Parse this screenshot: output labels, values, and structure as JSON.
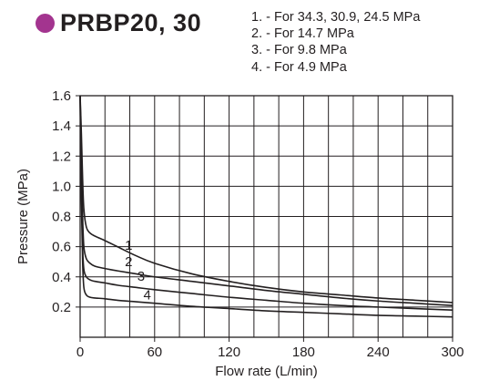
{
  "header": {
    "title": "PRBP20, 30",
    "bullet_color": "#a3348f"
  },
  "notes": [
    "1. - For 34.3, 30.9, 24.5 MPa",
    "2. - For 14.7 MPa",
    "3. - For 9.8 MPa",
    "4. - For 4.9 MPa"
  ],
  "chart_data": {
    "type": "line",
    "title": "PRBP20, 30",
    "xlabel": "Flow rate (L/min)",
    "ylabel": "Pressure (MPa)",
    "xlim": [
      0,
      300
    ],
    "ylim": [
      0,
      1.6
    ],
    "x_ticks": [
      0,
      60,
      120,
      180,
      240,
      300
    ],
    "x_tick_labels": [
      "0",
      "60",
      "120",
      "180",
      "240",
      "300"
    ],
    "y_ticks": [
      0.2,
      0.4,
      0.6,
      0.8,
      1.0,
      1.2,
      1.4,
      1.6
    ],
    "y_tick_labels": [
      "0.2",
      "0.4",
      "0.6",
      "0.8",
      "1.0",
      "1.2",
      "1.4",
      "1.6"
    ],
    "grid": true,
    "line_color": "#231f20",
    "series": [
      {
        "name": "1",
        "x": [
          0,
          1,
          2,
          3,
          5,
          8,
          12,
          20,
          30,
          45,
          60,
          90,
          120,
          150,
          180,
          210,
          240,
          270,
          300
        ],
        "y": [
          1.6,
          1.35,
          1.05,
          0.85,
          0.73,
          0.69,
          0.67,
          0.64,
          0.6,
          0.54,
          0.49,
          0.42,
          0.37,
          0.33,
          0.3,
          0.28,
          0.26,
          0.245,
          0.23
        ]
      },
      {
        "name": "2",
        "x": [
          0,
          1,
          2,
          3,
          5,
          8,
          12,
          20,
          30,
          45,
          60,
          90,
          120,
          150,
          180,
          210,
          240,
          270,
          300
        ],
        "y": [
          1.6,
          1.2,
          0.8,
          0.6,
          0.52,
          0.49,
          0.47,
          0.455,
          0.44,
          0.42,
          0.4,
          0.37,
          0.34,
          0.31,
          0.285,
          0.26,
          0.24,
          0.225,
          0.21
        ]
      },
      {
        "name": "3",
        "x": [
          0,
          1,
          2,
          3,
          5,
          8,
          12,
          20,
          30,
          45,
          60,
          90,
          120,
          150,
          180,
          210,
          240,
          270,
          300
        ],
        "y": [
          1.6,
          1.0,
          0.6,
          0.45,
          0.4,
          0.38,
          0.37,
          0.36,
          0.345,
          0.33,
          0.315,
          0.29,
          0.265,
          0.245,
          0.225,
          0.21,
          0.2,
          0.19,
          0.18
        ]
      },
      {
        "name": "4",
        "x": [
          0,
          1,
          2,
          3,
          5,
          8,
          12,
          20,
          30,
          45,
          60,
          90,
          120,
          150,
          180,
          210,
          240,
          270,
          300
        ],
        "y": [
          1.6,
          0.9,
          0.5,
          0.33,
          0.28,
          0.265,
          0.26,
          0.255,
          0.245,
          0.235,
          0.225,
          0.205,
          0.19,
          0.175,
          0.165,
          0.155,
          0.145,
          0.14,
          0.135
        ]
      }
    ],
    "curve_labels": [
      {
        "text": "1",
        "x": 36,
        "y": 0.58
      },
      {
        "text": "2",
        "x": 36,
        "y": 0.47
      },
      {
        "text": "3",
        "x": 46,
        "y": 0.375
      },
      {
        "text": "4",
        "x": 51,
        "y": 0.25
      }
    ]
  }
}
